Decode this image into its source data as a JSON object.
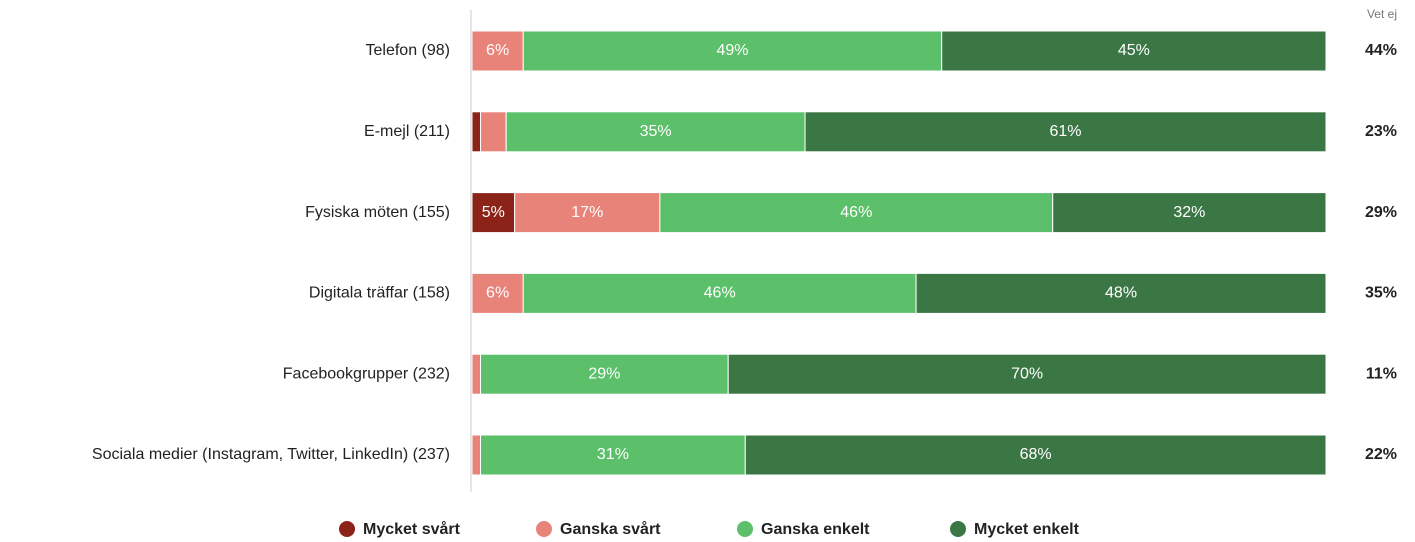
{
  "chart_data": {
    "type": "stacked_bar_horizontal",
    "categories": [
      "Telefon (98)",
      "E-mejl (211)",
      "Fysiska möten (155)",
      "Digitala träffar (158)",
      "Facebookgrupper (232)",
      "Sociala medier (Instagram, Twitter, LinkedIn) (237)"
    ],
    "xlim": [
      0,
      100
    ],
    "series": [
      {
        "name": "Mycket svårt",
        "color": "#8b2318",
        "values": [
          0,
          1,
          5,
          0,
          0,
          0
        ],
        "value_labels": [
          null,
          null,
          "5%",
          null,
          null,
          null
        ]
      },
      {
        "name": "Ganska svårt",
        "color": "#e8837a",
        "values": [
          6,
          3,
          17,
          6,
          1,
          1
        ],
        "value_labels": [
          "6%",
          null,
          "17%",
          "6%",
          null,
          null
        ]
      },
      {
        "name": "Ganska enkelt",
        "color": "#5cbf6a",
        "values": [
          49,
          35,
          46,
          46,
          29,
          31
        ],
        "value_labels": [
          "49%",
          "35%",
          "46%",
          "46%",
          "29%",
          "31%"
        ]
      },
      {
        "name": "Mycket enkelt",
        "color": "#3b7745",
        "values": [
          45,
          61,
          32,
          48,
          70,
          68
        ],
        "value_labels": [
          "45%",
          "61%",
          "32%",
          "48%",
          "70%",
          "68%"
        ]
      }
    ],
    "dont_know": {
      "title": "Vet ej",
      "values": [
        44,
        23,
        29,
        35,
        11,
        22
      ],
      "value_labels": [
        "44%",
        "23%",
        "29%",
        "35%",
        "11%",
        "22%"
      ]
    }
  }
}
